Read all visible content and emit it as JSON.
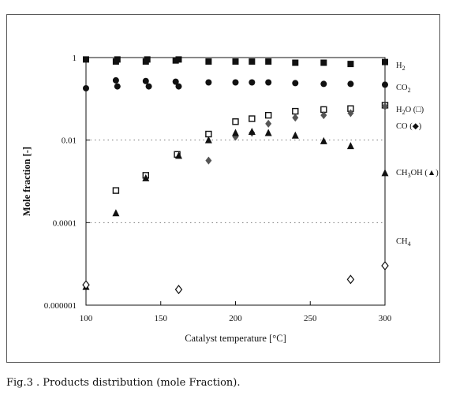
{
  "caption": "Fig.3 . Products distribution (mole Fraction).",
  "chart_data": {
    "type": "scatter",
    "xlabel": "Catalyst temperature [°C]",
    "ylabel": "Mole fraction [-]",
    "xlim": [
      100,
      300
    ],
    "ylim": [
      1e-06,
      1
    ],
    "yscale": "log",
    "xticks": [
      100,
      150,
      200,
      250,
      300
    ],
    "yticks": [
      {
        "value": 1,
        "label": "1"
      },
      {
        "value": 0.01,
        "label": "0.01"
      },
      {
        "value": 0.0001,
        "label": "0.0001"
      },
      {
        "value": 1e-06,
        "label": "0.000001"
      }
    ],
    "grid_dotted_y": [
      1,
      0.01,
      0.0001
    ],
    "series": [
      {
        "name": "H2",
        "label_base": "H",
        "label_sub": "2",
        "label_suffix": "",
        "marker": "filled-square",
        "color": "#111111",
        "points": [
          [
            100,
            0.9
          ],
          [
            120,
            0.8
          ],
          [
            121,
            0.9
          ],
          [
            140,
            0.8
          ],
          [
            141,
            0.9
          ],
          [
            160,
            0.85
          ],
          [
            162,
            0.9
          ],
          [
            182,
            0.8
          ],
          [
            200,
            0.8
          ],
          [
            211,
            0.8
          ],
          [
            222,
            0.8
          ],
          [
            240,
            0.75
          ],
          [
            259,
            0.75
          ],
          [
            277,
            0.7
          ],
          [
            300,
            0.78
          ]
        ]
      },
      {
        "name": "CO2",
        "label_base": "CO",
        "label_sub": "2",
        "label_suffix": "",
        "marker": "filled-circle",
        "color": "#111111",
        "points": [
          [
            100,
            0.18
          ],
          [
            120,
            0.28
          ],
          [
            121,
            0.2
          ],
          [
            140,
            0.27
          ],
          [
            142,
            0.2
          ],
          [
            160,
            0.26
          ],
          [
            162,
            0.2
          ],
          [
            182,
            0.25
          ],
          [
            200,
            0.25
          ],
          [
            211,
            0.25
          ],
          [
            222,
            0.25
          ],
          [
            240,
            0.24
          ],
          [
            259,
            0.23
          ],
          [
            277,
            0.23
          ],
          [
            300,
            0.22
          ]
        ]
      },
      {
        "name": "H2O",
        "label_base": "H",
        "label_sub": "2",
        "label_suffix": "O (□)",
        "marker": "open-square",
        "color": "#111111",
        "points": [
          [
            120,
            0.0006
          ],
          [
            140,
            0.0014
          ],
          [
            161,
            0.0045
          ],
          [
            182,
            0.014
          ],
          [
            200,
            0.028
          ],
          [
            211,
            0.033
          ],
          [
            222,
            0.04
          ],
          [
            240,
            0.05
          ],
          [
            259,
            0.055
          ],
          [
            277,
            0.058
          ],
          [
            300,
            0.07
          ]
        ]
      },
      {
        "name": "CO",
        "label_base": "CO (◆)",
        "label_sub": "",
        "label_suffix": "",
        "marker": "filled-diamond",
        "color": "#555555",
        "points": [
          [
            182,
            0.0032
          ],
          [
            200,
            0.012
          ],
          [
            211,
            0.015
          ],
          [
            222,
            0.025
          ],
          [
            240,
            0.035
          ],
          [
            259,
            0.04
          ],
          [
            277,
            0.045
          ],
          [
            300,
            0.065
          ]
        ]
      },
      {
        "name": "CH3OH",
        "label_base": "CH",
        "label_sub": "3",
        "label_suffix": "OH (▲)",
        "marker": "filled-triangle",
        "color": "#111111",
        "points": [
          [
            100,
            2.8e-06
          ],
          [
            120,
            0.00017
          ],
          [
            140,
            0.0012
          ],
          [
            162,
            0.0042
          ],
          [
            182,
            0.01
          ],
          [
            200,
            0.015
          ],
          [
            211,
            0.016
          ],
          [
            222,
            0.015
          ],
          [
            240,
            0.013
          ],
          [
            259,
            0.0095
          ],
          [
            277,
            0.0072
          ],
          [
            300,
            0.0016
          ]
        ]
      },
      {
        "name": "CH4",
        "label_base": "CH",
        "label_sub": "4",
        "label_suffix": "",
        "marker": "open-diamond",
        "color": "#111111",
        "points": [
          [
            100,
            3.1e-06
          ],
          [
            162,
            2.4e-06
          ],
          [
            277,
            4.2e-06
          ],
          [
            300,
            9e-06
          ]
        ]
      }
    ]
  }
}
